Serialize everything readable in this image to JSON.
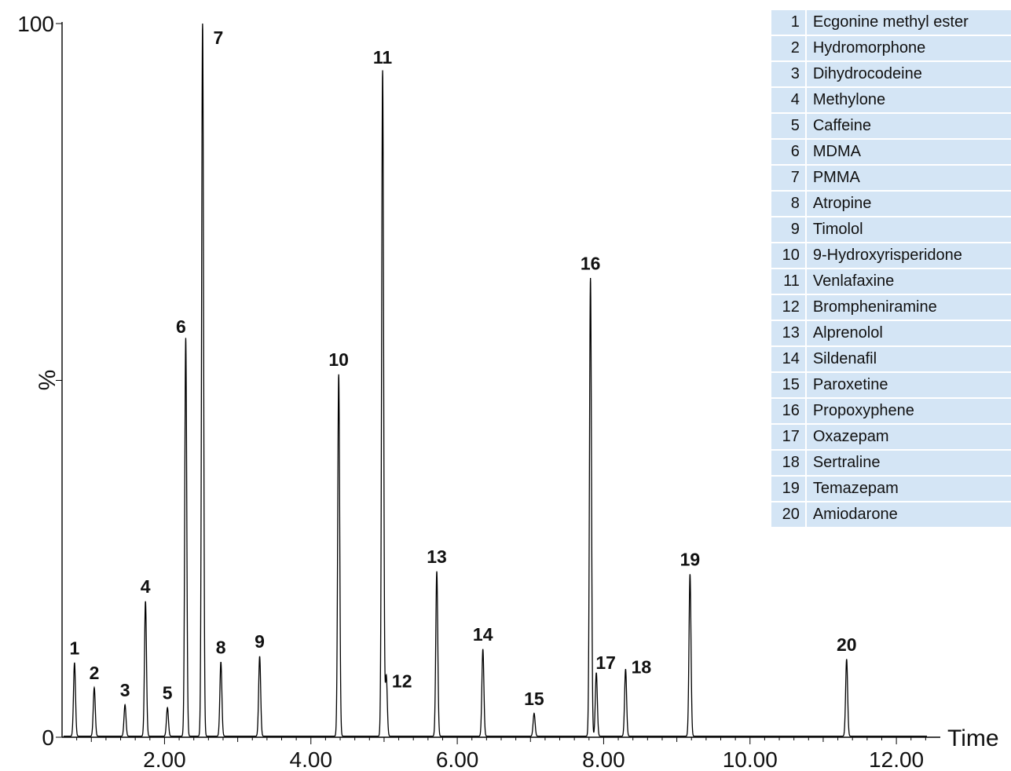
{
  "chart_data": {
    "type": "line",
    "title": "",
    "xlabel": "Time",
    "ylabel": "%",
    "xlim": [
      0.6,
      12.6
    ],
    "ylim": [
      0,
      100
    ],
    "x_ticks": [
      "2.00",
      "4.00",
      "6.00",
      "8.00",
      "10.00",
      "12.00"
    ],
    "x_tick_values": [
      2,
      4,
      6,
      8,
      10,
      12
    ],
    "y_ticks": [
      "0",
      "100"
    ],
    "y_tick_values": [
      0,
      100
    ],
    "y_mid_mark": 50,
    "grid": false,
    "legend_position": "top-right",
    "peaks": [
      {
        "id": "1",
        "rt": 0.77,
        "height": 10.3
      },
      {
        "id": "2",
        "rt": 1.04,
        "height": 6.8
      },
      {
        "id": "3",
        "rt": 1.46,
        "height": 4.4
      },
      {
        "id": "4",
        "rt": 1.74,
        "height": 18.9
      },
      {
        "id": "5",
        "rt": 2.04,
        "height": 4.0
      },
      {
        "id": "6",
        "rt": 2.29,
        "height": 55.8
      },
      {
        "id": "7",
        "rt": 2.52,
        "height": 100
      },
      {
        "id": "8",
        "rt": 2.77,
        "height": 10.4
      },
      {
        "id": "9",
        "rt": 3.3,
        "height": 11.2
      },
      {
        "id": "10",
        "rt": 4.38,
        "height": 50.7
      },
      {
        "id": "11",
        "rt": 4.98,
        "height": 93.3
      },
      {
        "id": "12",
        "rt": 5.03,
        "height": 8.5
      },
      {
        "id": "13",
        "rt": 5.72,
        "height": 23.1
      },
      {
        "id": "14",
        "rt": 6.35,
        "height": 12.2
      },
      {
        "id": "15",
        "rt": 7.05,
        "height": 3.2
      },
      {
        "id": "16",
        "rt": 7.82,
        "height": 64.2
      },
      {
        "id": "17",
        "rt": 7.9,
        "height": 8.9
      },
      {
        "id": "18",
        "rt": 8.3,
        "height": 9.4
      },
      {
        "id": "19",
        "rt": 9.18,
        "height": 22.7
      },
      {
        "id": "20",
        "rt": 11.32,
        "height": 10.8
      }
    ],
    "compounds": [
      {
        "num": "1",
        "name": "Ecgonine methyl ester"
      },
      {
        "num": "2",
        "name": "Hydromorphone"
      },
      {
        "num": "3",
        "name": "Dihydrocodeine"
      },
      {
        "num": "4",
        "name": "Methylone"
      },
      {
        "num": "5",
        "name": "Caffeine"
      },
      {
        "num": "6",
        "name": "MDMA"
      },
      {
        "num": "7",
        "name": "PMMA"
      },
      {
        "num": "8",
        "name": "Atropine"
      },
      {
        "num": "9",
        "name": "Timolol"
      },
      {
        "num": "10",
        "name": "9-Hydroxyrisperidone"
      },
      {
        "num": "11",
        "name": "Venlafaxine"
      },
      {
        "num": "12",
        "name": "Brompheniramine"
      },
      {
        "num": "13",
        "name": "Alprenolol"
      },
      {
        "num": "14",
        "name": "Sildenafil"
      },
      {
        "num": "15",
        "name": "Paroxetine"
      },
      {
        "num": "16",
        "name": "Propoxyphene"
      },
      {
        "num": "17",
        "name": "Oxazepam"
      },
      {
        "num": "18",
        "name": "Sertraline"
      },
      {
        "num": "19",
        "name": "Temazepam"
      },
      {
        "num": "20",
        "name": "Amiodarone"
      }
    ]
  },
  "colors": {
    "trace": "#000000",
    "legend_bg": "#d4e5f5"
  }
}
